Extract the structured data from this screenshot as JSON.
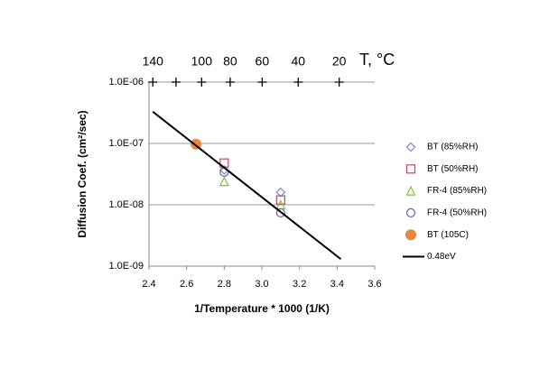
{
  "chart_data": {
    "type": "scatter",
    "xlabel": "1/Temperature * 1000 (1/K)",
    "ylabel": "Diffusion Coef. (cm²/sec)",
    "x2label": "T, °C",
    "xlim": [
      2.4,
      3.6
    ],
    "xticks": [
      2.4,
      2.6,
      2.8,
      {
        "value": 3.0,
        "label": "3.0"
      },
      3.2,
      3.4,
      3.6
    ],
    "ylim": [
      1e-09,
      1e-06
    ],
    "ylog": true,
    "yticks": [
      {
        "value": 1e-09,
        "label": "1.0E-09"
      },
      {
        "value": 1e-08,
        "label": "1.0E-08"
      },
      {
        "value": 1e-07,
        "label": "1.0E-07"
      },
      {
        "value": 1e-06,
        "label": "1.0E-06"
      }
    ],
    "x2ticks": [
      {
        "value": 140,
        "label": "140"
      },
      {
        "value": 120,
        "label": null
      },
      {
        "value": 100,
        "label": "100"
      },
      {
        "value": 80,
        "label": "80"
      },
      {
        "value": 60,
        "label": "60"
      },
      {
        "value": 40,
        "label": "40"
      },
      {
        "value": 20,
        "label": "20"
      }
    ],
    "grid": true,
    "legend": "right",
    "series": [
      {
        "name": "BT (85%RH)",
        "color": "#8080d0",
        "marker": "diamond",
        "x": [
          2.8,
          3.1
        ],
        "values": [
          3.7e-08,
          1.6e-08
        ]
      },
      {
        "name": "BT (50%RH)",
        "color": "#c04468",
        "marker": "square",
        "x": [
          2.8,
          3.1
        ],
        "values": [
          4.8e-08,
          1.2e-08
        ]
      },
      {
        "name": "FR-4 (85%RH)",
        "color": "#80c040",
        "marker": "triangle",
        "x": [
          2.8,
          3.1
        ],
        "values": [
          2.4e-08,
          1e-08
        ]
      },
      {
        "name": "FR-4 (50%RH)",
        "color": "#7060a8",
        "marker": "circle",
        "x": [
          2.8,
          3.1
        ],
        "values": [
          3.4e-08,
          7.4e-09
        ]
      },
      {
        "name": "BT (105C)",
        "color": "#e8883a",
        "marker": "filled-circle",
        "x": [
          2.65
        ],
        "values": [
          9.7e-08
        ]
      },
      {
        "name": "0.48eV",
        "color": "#000000",
        "marker": "line",
        "x": [
          2.42,
          3.42
        ],
        "values": [
          3.3e-07,
          1.3e-09
        ]
      }
    ]
  }
}
